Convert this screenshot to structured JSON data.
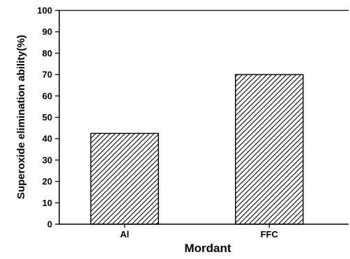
{
  "chart_data": {
    "type": "bar",
    "categories": [
      "Al",
      "FFC"
    ],
    "values": [
      42.5,
      70
    ],
    "xlabel": "Mordant",
    "ylabel": "Superoxide elimination ability(%)",
    "ylim": [
      0,
      100
    ],
    "yticks": [
      0,
      10,
      20,
      30,
      40,
      50,
      60,
      70,
      80,
      90,
      100
    ],
    "grid": false,
    "bar_pattern": "diagonal-hatch",
    "bar_fill": "#ffffff",
    "bar_stroke": "#000000"
  }
}
